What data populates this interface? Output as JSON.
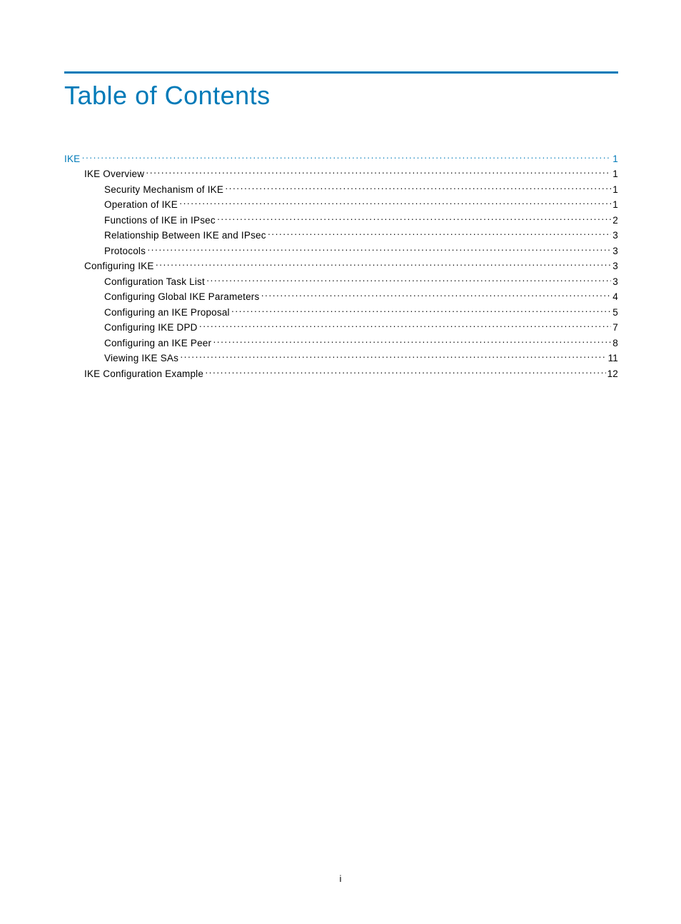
{
  "title": "Table of Contents",
  "colors": {
    "accent": "#007ab8",
    "text": "#000000",
    "background": "#ffffff"
  },
  "typography": {
    "title_fontsize_pt": 27,
    "body_fontsize_pt": 10,
    "title_font": "Futura / Century Gothic",
    "body_font": "Futura / Century Gothic"
  },
  "page_number": "i",
  "toc": [
    {
      "label": "IKE",
      "page": "1",
      "level": 0,
      "link": true
    },
    {
      "label": "IKE Overview",
      "page": "1",
      "level": 1,
      "link": false
    },
    {
      "label": "Security Mechanism of IKE",
      "page": "1",
      "level": 2,
      "link": false
    },
    {
      "label": "Operation of IKE",
      "page": "1",
      "level": 2,
      "link": false
    },
    {
      "label": "Functions of IKE in IPsec",
      "page": "2",
      "level": 2,
      "link": false
    },
    {
      "label": "Relationship Between IKE and IPsec",
      "page": "3",
      "level": 2,
      "link": false
    },
    {
      "label": "Protocols",
      "page": "3",
      "level": 2,
      "link": false
    },
    {
      "label": "Configuring IKE",
      "page": "3",
      "level": 1,
      "link": false
    },
    {
      "label": "Configuration Task List",
      "page": "3",
      "level": 2,
      "link": false
    },
    {
      "label": "Configuring Global IKE Parameters",
      "page": "4",
      "level": 2,
      "link": false
    },
    {
      "label": "Configuring an IKE Proposal",
      "page": "5",
      "level": 2,
      "link": false
    },
    {
      "label": "Configuring IKE DPD",
      "page": "7",
      "level": 2,
      "link": false
    },
    {
      "label": "Configuring an IKE Peer",
      "page": "8",
      "level": 2,
      "link": false
    },
    {
      "label": "Viewing IKE SAs",
      "page": "11",
      "level": 2,
      "link": false
    },
    {
      "label": "IKE Configuration Example",
      "page": "12",
      "level": 1,
      "link": false
    }
  ]
}
